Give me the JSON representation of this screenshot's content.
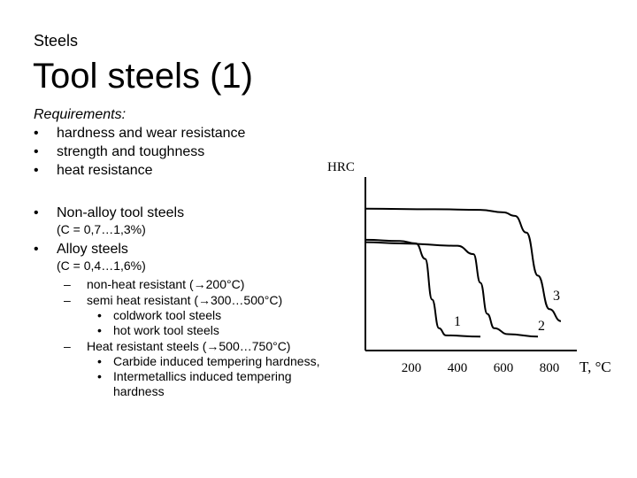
{
  "slide": {
    "subtitle": "Steels",
    "title": "Tool steels (1)",
    "requirements_label": "Requirements:",
    "requirements": [
      "hardness and wear resistance",
      "strength and toughness",
      "heat resistance"
    ],
    "bullet_glyph": "•",
    "dash_glyph": "–",
    "non_alloy": {
      "label": "Non-alloy tool steels",
      "carbon": "(C = 0,7…1,3%)"
    },
    "alloy": {
      "label": "Alloy steels",
      "carbon": "(C = 0,4…1,6%)"
    },
    "alloy_items": [
      {
        "text": "non-heat resistant (→200°C)"
      },
      {
        "text": "semi heat resistant (→300…500°C)"
      },
      {
        "text": "coldwork tool steels",
        "level": 3
      },
      {
        "text": "hot work tool steels",
        "level": 3
      },
      {
        "text": "Heat resistant steels (→500…750°C)"
      },
      {
        "text": "Carbide induced tempering hardness,",
        "level": 3
      },
      {
        "text": "Intermetallics induced tempering hardness",
        "level": 3
      }
    ]
  },
  "chart_data": {
    "type": "line",
    "ylabel": "HRC",
    "xlabel": "T, °C",
    "x_ticks": [
      200,
      400,
      600,
      800
    ],
    "xlim": [
      0,
      1000
    ],
    "series": [
      {
        "name": "1",
        "x": [
          0,
          150,
          220,
          260,
          290,
          320,
          350,
          500
        ],
        "y": [
          43,
          42.5,
          41.5,
          35,
          18,
          6,
          3,
          2.5
        ]
      },
      {
        "name": "2",
        "x": [
          0,
          150,
          400,
          470,
          500,
          530,
          560,
          620,
          750
        ],
        "y": [
          42,
          41.5,
          40.5,
          37,
          25,
          12,
          6,
          3.5,
          2.5
        ]
      },
      {
        "name": "3",
        "x": [
          0,
          300,
          500,
          600,
          650,
          700,
          750,
          800,
          850
        ],
        "y": [
          56,
          55.8,
          55.5,
          54.5,
          53,
          46,
          28,
          14,
          9
        ]
      }
    ]
  }
}
